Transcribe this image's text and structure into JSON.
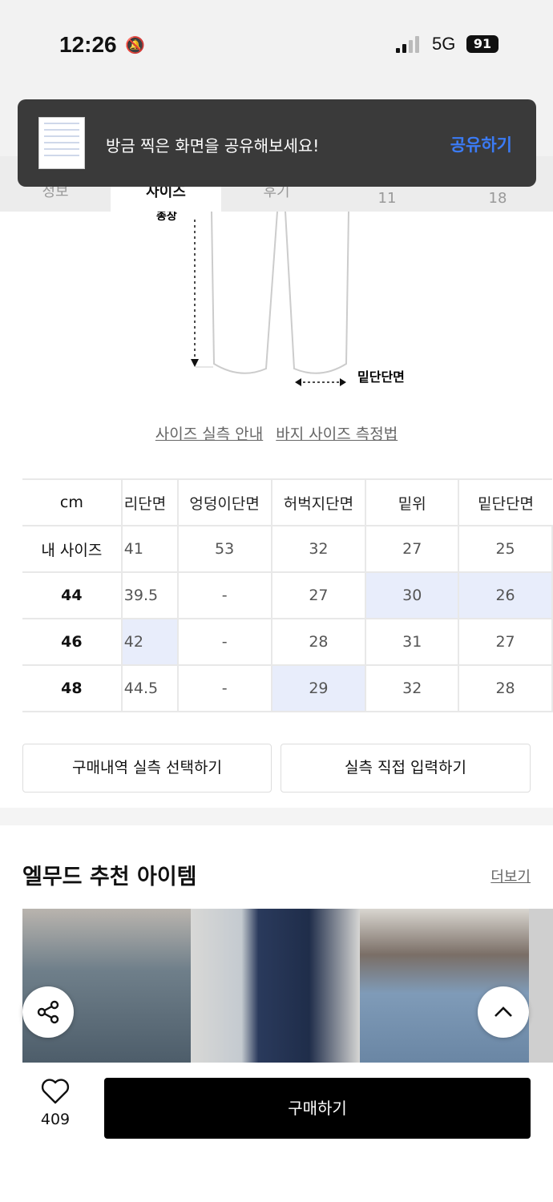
{
  "status_bar": {
    "time": "12:26",
    "network": "5G",
    "battery": "91"
  },
  "tabs": [
    {
      "label": "정보"
    },
    {
      "label": "사이즈"
    },
    {
      "label": "후기"
    },
    {
      "label": "11"
    },
    {
      "label": "18"
    }
  ],
  "toast": {
    "message": "방금 찍은 화면을 공유해보세요!",
    "action": "공유하기"
  },
  "diagram": {
    "top_label": "총장",
    "hem_label": "밑단단면"
  },
  "links": [
    "사이즈 실측 안내",
    "바지 사이즈 측정법"
  ],
  "size_table": {
    "headers": [
      "cm",
      "리단면",
      "엉덩이단면",
      "허벅지단면",
      "밑위",
      "밑단단면"
    ],
    "rows": [
      {
        "label": "내 사이즈",
        "cells": [
          "41",
          "53",
          "32",
          "27",
          "25"
        ]
      },
      {
        "label": "44",
        "cells": [
          "39.5",
          "-",
          "27",
          "30",
          "26"
        ]
      },
      {
        "label": "46",
        "cells": [
          "42",
          "-",
          "28",
          "31",
          "27"
        ]
      },
      {
        "label": "48",
        "cells": [
          "44.5",
          "-",
          "29",
          "32",
          "28"
        ]
      }
    ],
    "highlight_color": "#e8edfb"
  },
  "buttons": {
    "history": "구매내역 실측 선택하기",
    "manual": "실측 직접 입력하기"
  },
  "recommend": {
    "title": "엘무드 추천 아이템",
    "more": "더보기"
  },
  "bottom": {
    "like_count": "409",
    "buy": "구매하기"
  }
}
